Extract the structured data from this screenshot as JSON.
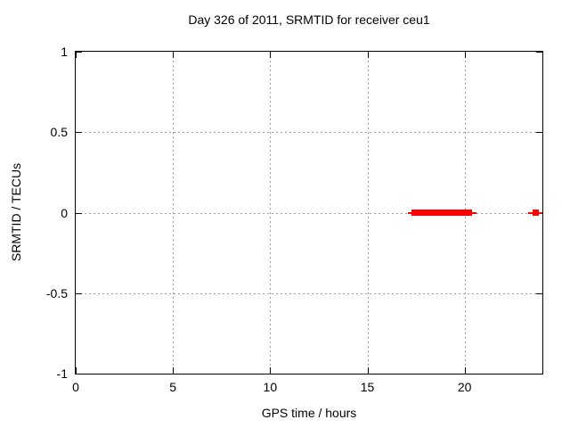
{
  "chart_data": {
    "type": "scatter",
    "title": "Day 326 of 2011, SRMTID for receiver ceu1",
    "xlabel": "GPS time / hours",
    "ylabel": "SRMTID / TECUs",
    "xlim": [
      0,
      24
    ],
    "ylim": [
      -1,
      1
    ],
    "xticks": [
      0,
      5,
      10,
      15,
      20
    ],
    "xtick_labels": [
      "0",
      "5",
      "10",
      "15",
      "20"
    ],
    "yticks": [
      1,
      0.5,
      0,
      -0.5,
      -1
    ],
    "ytick_labels": [
      "1",
      "0.5",
      "0",
      "-0.5",
      "-1"
    ],
    "grid": true,
    "legend": "none",
    "colors": {
      "data": "#ff0000",
      "grid": "#a0a0a0",
      "border": "#000000",
      "text": "#000000",
      "background": "#ffffff"
    },
    "series": [
      {
        "name": "SRMTID",
        "marker": "filled-square",
        "marker_size_px": 7,
        "color": "#ff0000",
        "line_segments": [
          {
            "y": 0,
            "x1": 17.1,
            "x2": 20.62
          },
          {
            "y": 0,
            "x1": 23.27,
            "x2": 24.0
          }
        ],
        "marker_runs": [
          {
            "y": 0,
            "x1": 17.28,
            "x2": 17.51
          },
          {
            "y": 0,
            "x1": 17.6,
            "x2": 20.39
          },
          {
            "y": 0,
            "x1": 23.5,
            "x2": 23.82
          }
        ]
      }
    ]
  }
}
